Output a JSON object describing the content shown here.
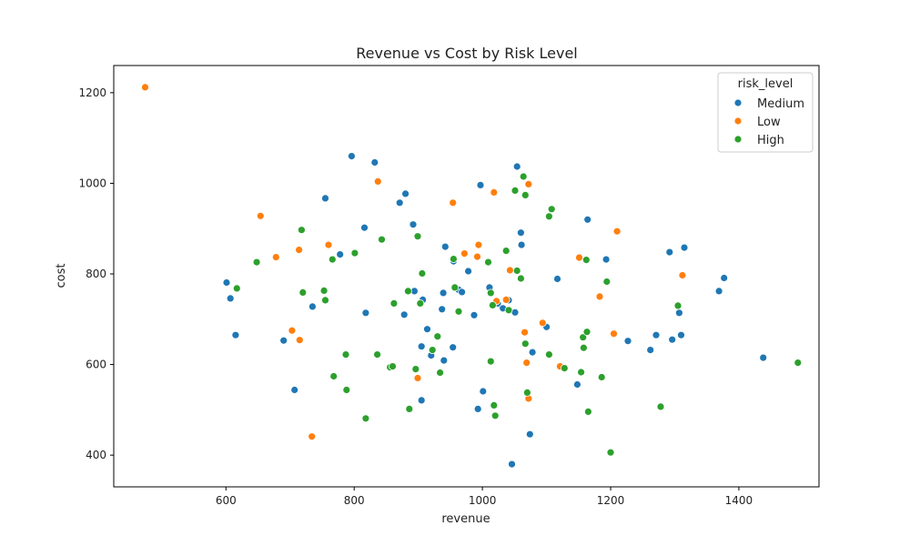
{
  "chart_data": {
    "type": "scatter",
    "title": "Revenue vs Cost by Risk Level",
    "xlabel": "revenue",
    "ylabel": "cost",
    "xlim": [
      425,
      1525
    ],
    "ylim": [
      330,
      1260
    ],
    "xticks": [
      600,
      800,
      1000,
      1200,
      1400
    ],
    "yticks": [
      400,
      600,
      800,
      1000,
      1200
    ],
    "grid": false,
    "legend": {
      "title": "risk_level",
      "placement": "top-right"
    },
    "series": [
      {
        "name": "Medium",
        "color": "#1f77b4",
        "points": [
          [
            601,
            781
          ],
          [
            607,
            746
          ],
          [
            615,
            665
          ],
          [
            690,
            653
          ],
          [
            707,
            544
          ],
          [
            735,
            728
          ],
          [
            755,
            967
          ],
          [
            778,
            843
          ],
          [
            796,
            1060
          ],
          [
            816,
            902
          ],
          [
            818,
            714
          ],
          [
            832,
            1046
          ],
          [
            871,
            957
          ],
          [
            878,
            710
          ],
          [
            880,
            977
          ],
          [
            892,
            909
          ],
          [
            894,
            762
          ],
          [
            905,
            521
          ],
          [
            905,
            640
          ],
          [
            907,
            743
          ],
          [
            914,
            678
          ],
          [
            920,
            620
          ],
          [
            937,
            722
          ],
          [
            939,
            758
          ],
          [
            940,
            609
          ],
          [
            942,
            860
          ],
          [
            954,
            638
          ],
          [
            955,
            828
          ],
          [
            963,
            765
          ],
          [
            968,
            760
          ],
          [
            978,
            806
          ],
          [
            987,
            709
          ],
          [
            993,
            502
          ],
          [
            997,
            996
          ],
          [
            1001,
            541
          ],
          [
            1011,
            770
          ],
          [
            1024,
            735
          ],
          [
            1032,
            724
          ],
          [
            1041,
            742
          ],
          [
            1046,
            380
          ],
          [
            1051,
            715
          ],
          [
            1054,
            1037
          ],
          [
            1060,
            891
          ],
          [
            1061,
            864
          ],
          [
            1074,
            446
          ],
          [
            1078,
            627
          ],
          [
            1100,
            683
          ],
          [
            1117,
            789
          ],
          [
            1148,
            556
          ],
          [
            1164,
            920
          ],
          [
            1193,
            832
          ],
          [
            1227,
            652
          ],
          [
            1262,
            632
          ],
          [
            1271,
            665
          ],
          [
            1292,
            848
          ],
          [
            1296,
            655
          ],
          [
            1307,
            714
          ],
          [
            1310,
            665
          ],
          [
            1315,
            858
          ],
          [
            1369,
            762
          ],
          [
            1377,
            791
          ],
          [
            1438,
            615
          ]
        ]
      },
      {
        "name": "Low",
        "color": "#ff7f0e",
        "points": [
          [
            474,
            1212
          ],
          [
            654,
            928
          ],
          [
            678,
            837
          ],
          [
            703,
            675
          ],
          [
            714,
            853
          ],
          [
            715,
            654
          ],
          [
            734,
            441
          ],
          [
            760,
            864
          ],
          [
            837,
            1004
          ],
          [
            899,
            570
          ],
          [
            954,
            957
          ],
          [
            972,
            845
          ],
          [
            992,
            838
          ],
          [
            994,
            864
          ],
          [
            1018,
            980
          ],
          [
            1022,
            740
          ],
          [
            1037,
            743
          ],
          [
            1043,
            808
          ],
          [
            1066,
            671
          ],
          [
            1069,
            604
          ],
          [
            1072,
            998
          ],
          [
            1072,
            525
          ],
          [
            1094,
            692
          ],
          [
            1121,
            596
          ],
          [
            1151,
            836
          ],
          [
            1183,
            750
          ],
          [
            1205,
            668
          ],
          [
            1210,
            894
          ],
          [
            1312,
            797
          ]
        ]
      },
      {
        "name": "High",
        "color": "#2ca02c",
        "points": [
          [
            617,
            768
          ],
          [
            648,
            826
          ],
          [
            718,
            897
          ],
          [
            720,
            759
          ],
          [
            753,
            763
          ],
          [
            755,
            742
          ],
          [
            766,
            832
          ],
          [
            768,
            574
          ],
          [
            787,
            622
          ],
          [
            788,
            544
          ],
          [
            801,
            846
          ],
          [
            818,
            481
          ],
          [
            836,
            622
          ],
          [
            843,
            876
          ],
          [
            856,
            594
          ],
          [
            860,
            596
          ],
          [
            862,
            735
          ],
          [
            884,
            762
          ],
          [
            886,
            502
          ],
          [
            896,
            590
          ],
          [
            899,
            883
          ],
          [
            903,
            735
          ],
          [
            906,
            801
          ],
          [
            922,
            632
          ],
          [
            930,
            662
          ],
          [
            934,
            582
          ],
          [
            955,
            833
          ],
          [
            957,
            770
          ],
          [
            963,
            717
          ],
          [
            1009,
            826
          ],
          [
            1013,
            607
          ],
          [
            1013,
            758
          ],
          [
            1016,
            731
          ],
          [
            1018,
            510
          ],
          [
            1020,
            487
          ],
          [
            1037,
            851
          ],
          [
            1041,
            720
          ],
          [
            1051,
            984
          ],
          [
            1054,
            807
          ],
          [
            1060,
            790
          ],
          [
            1064,
            1015
          ],
          [
            1067,
            974
          ],
          [
            1067,
            646
          ],
          [
            1070,
            538
          ],
          [
            1104,
            622
          ],
          [
            1104,
            927
          ],
          [
            1108,
            943
          ],
          [
            1128,
            592
          ],
          [
            1154,
            583
          ],
          [
            1157,
            660
          ],
          [
            1158,
            637
          ],
          [
            1162,
            831
          ],
          [
            1163,
            672
          ],
          [
            1165,
            496
          ],
          [
            1186,
            572
          ],
          [
            1194,
            783
          ],
          [
            1200,
            406
          ],
          [
            1278,
            507
          ],
          [
            1305,
            730
          ],
          [
            1492,
            604
          ]
        ]
      }
    ]
  }
}
